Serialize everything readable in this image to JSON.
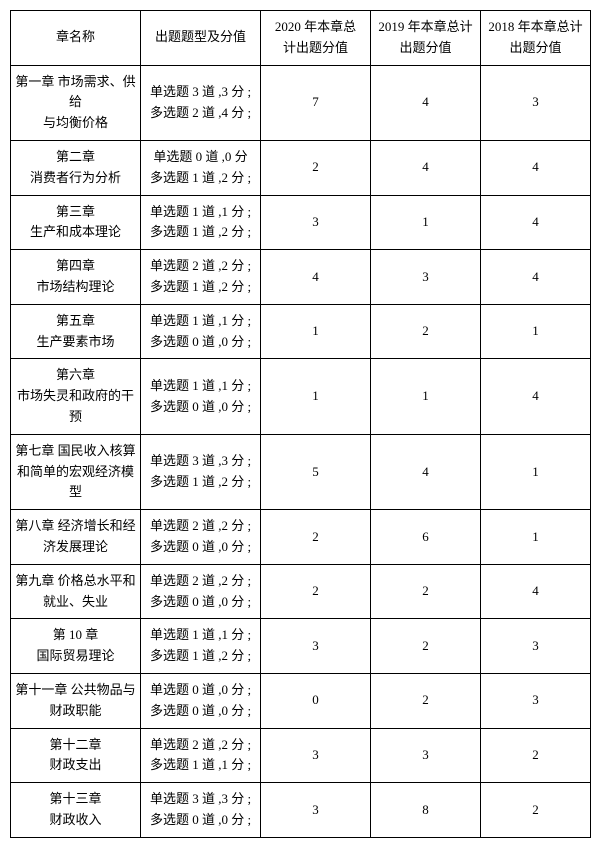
{
  "headers": {
    "h1": "章名称",
    "h2": "出题题型及分值",
    "h3a": "2020 年本章总",
    "h3b": "计出题分值",
    "h4a": "2019 年本章总计",
    "h4b": "出题分值",
    "h5a": "2018 年本章总计",
    "h5b": "出题分值"
  },
  "rows": [
    {
      "c1a": "第一章 市场需求、供给",
      "c1b": "与均衡价格",
      "q1": "单选题 3 道 ,3 分 ;",
      "q2": "多选题 2 道 ,4 分 ;",
      "y20": "7",
      "y19": "4",
      "y18": "3"
    },
    {
      "c1a": "第二章",
      "c1b": "消费者行为分析",
      "q1": "单选题 0 道 ,0 分",
      "q2": "多选题 1 道 ,2 分 ;",
      "y20": "2",
      "y19": "4",
      "y18": "4"
    },
    {
      "c1a": "第三章",
      "c1b": "生产和成本理论",
      "q1": "单选题 1 道 ,1 分 ;",
      "q2": "多选题 1 道 ,2 分 ;",
      "y20": "3",
      "y19": "1",
      "y18": "4"
    },
    {
      "c1a": "第四章",
      "c1b": "市场结构理论",
      "q1": "单选题 2 道 ,2 分 ;",
      "q2": "多选题 1 道 ,2 分 ;",
      "y20": "4",
      "y19": "3",
      "y18": "4"
    },
    {
      "c1a": "第五章",
      "c1b": "生产要素市场",
      "q1": "单选题 1 道 ,1 分 ;",
      "q2": "多选题 0 道 ,0 分 ;",
      "y20": "1",
      "y19": "2",
      "y18": "1"
    },
    {
      "c1a": "第六章",
      "c1b": "市场失灵和政府的干预",
      "q1": "单选题 1 道 ,1 分 ;",
      "q2": "多选题 0 道 ,0 分 ;",
      "y20": "1",
      "y19": "1",
      "y18": "4"
    },
    {
      "c1a": "第七章 国民收入核算",
      "c1b": "和简单的宏观经济模型",
      "q1": "单选题 3 道 ,3 分 ;",
      "q2": "多选题 1 道 ,2 分 ;",
      "y20": "5",
      "y19": "4",
      "y18": "1"
    },
    {
      "c1a": "第八章 经济增长和经",
      "c1b": "济发展理论",
      "q1": "单选题 2 道 ,2 分 ;",
      "q2": "多选题 0 道 ,0 分 ;",
      "y20": "2",
      "y19": "6",
      "y18": "1"
    },
    {
      "c1a": "第九章 价格总水平和",
      "c1b": "就业、失业",
      "q1": "单选题 2 道 ,2 分 ;",
      "q2": "多选题 0 道 ,0 分 ;",
      "y20": "2",
      "y19": "2",
      "y18": "4"
    },
    {
      "c1a": "第 10 章",
      "c1b": "国际贸易理论",
      "q1": "单选题 1 道 ,1 分 ;",
      "q2": "多选题 1 道 ,2 分 ;",
      "y20": "3",
      "y19": "2",
      "y18": "3"
    },
    {
      "c1a": "第十一章 公共物品与",
      "c1b": "财政职能",
      "q1": "单选题 0 道 ,0 分 ;",
      "q2": "多选题 0 道 ,0 分 ;",
      "y20": "0",
      "y19": "2",
      "y18": "3"
    },
    {
      "c1a": "第十二章",
      "c1b": "财政支出",
      "q1": "单选题 2 道 ,2 分 ;",
      "q2": "多选题 1 道 ,1 分 ;",
      "y20": "3",
      "y19": "3",
      "y18": "2"
    },
    {
      "c1a": "第十三章",
      "c1b": "财政收入",
      "q1": "单选题 3 道 ,3 分 ;",
      "q2": "多选题 0 道 ,0 分 ;",
      "y20": "3",
      "y19": "8",
      "y18": "2"
    }
  ]
}
